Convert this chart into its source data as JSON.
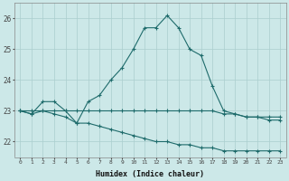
{
  "xlabel": "Humidex (Indice chaleur)",
  "background_color": "#cce8e8",
  "grid_color": "#aacece",
  "line_color": "#1e6b6b",
  "x_values": [
    0,
    1,
    2,
    3,
    4,
    5,
    6,
    7,
    8,
    9,
    10,
    11,
    12,
    13,
    14,
    15,
    16,
    17,
    18,
    19,
    20,
    21,
    22,
    23
  ],
  "series1": [
    23.0,
    22.9,
    23.3,
    23.3,
    23.0,
    22.6,
    23.3,
    23.5,
    24.0,
    24.4,
    25.0,
    25.7,
    25.7,
    26.1,
    25.7,
    25.0,
    24.8,
    23.8,
    23.0,
    22.9,
    22.8,
    22.8,
    22.7,
    22.7
  ],
  "series2": [
    23.0,
    23.0,
    23.0,
    23.0,
    23.0,
    23.0,
    23.0,
    23.0,
    23.0,
    23.0,
    23.0,
    23.0,
    23.0,
    23.0,
    23.0,
    23.0,
    23.0,
    23.0,
    22.9,
    22.9,
    22.8,
    22.8,
    22.8,
    22.8
  ],
  "series3": [
    23.0,
    22.9,
    23.0,
    22.9,
    22.8,
    22.6,
    22.6,
    22.5,
    22.4,
    22.3,
    22.2,
    22.1,
    22.0,
    22.0,
    21.9,
    21.9,
    21.8,
    21.8,
    21.7,
    21.7,
    21.7,
    21.7,
    21.7,
    21.7
  ],
  "ylim": [
    21.5,
    26.5
  ],
  "yticks": [
    22,
    23,
    24,
    25,
    26
  ],
  "xticks": [
    0,
    1,
    2,
    3,
    4,
    5,
    6,
    7,
    8,
    9,
    10,
    11,
    12,
    13,
    14,
    15,
    16,
    17,
    18,
    19,
    20,
    21,
    22,
    23
  ]
}
